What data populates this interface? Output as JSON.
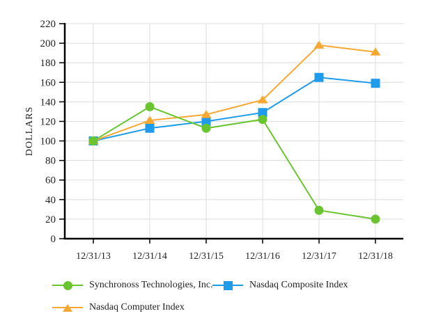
{
  "chart_data": {
    "type": "line",
    "title": "",
    "xlabel": "",
    "ylabel": "DOLLARS",
    "categories": [
      "12/31/13",
      "12/31/14",
      "12/31/15",
      "12/31/16",
      "12/31/17",
      "12/31/18"
    ],
    "ylim": [
      0,
      220
    ],
    "ytick_step": 20,
    "grid": true,
    "legend_position": "bottom",
    "series": [
      {
        "name": "Synchronoss Technologies, Inc.",
        "marker": "circle",
        "color": "#69C52F",
        "values": [
          100,
          135,
          113,
          122,
          29,
          20
        ]
      },
      {
        "name": "Nasdaq Composite Index",
        "marker": "square",
        "color": "#1E9BEB",
        "values": [
          100,
          113,
          120,
          129,
          165,
          159
        ]
      },
      {
        "name": "Nasdaq Computer Index",
        "marker": "triangle",
        "color": "#F7A833",
        "values": [
          100,
          121,
          127,
          142,
          198,
          191
        ]
      }
    ],
    "draw_order": [
      1,
      2,
      0
    ],
    "axis_color": "#000000",
    "grid_color": "#DCDCDC",
    "text_color": "#222222"
  },
  "legend": {
    "items": [
      {
        "label": "Synchronoss Technologies, Inc."
      },
      {
        "label": "Nasdaq Composite Index"
      },
      {
        "label": "Nasdaq Computer Index"
      }
    ]
  }
}
